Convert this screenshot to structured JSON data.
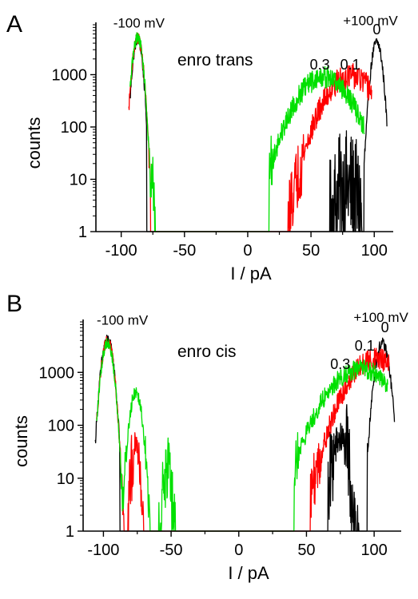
{
  "chart_data": [
    {
      "type": "line",
      "panel_label": "A",
      "title": "enro trans",
      "xlabel": "I / pA",
      "ylabel": "counts",
      "xlim": [
        -120,
        115
      ],
      "ylim": [
        1,
        10000
      ],
      "y_scale": "log",
      "x_ticks": [
        -100,
        -50,
        0,
        50,
        100
      ],
      "y_ticks": [
        1,
        10,
        100,
        1000
      ],
      "grid": false,
      "annotations": [
        {
          "text": "-100 mV",
          "x": -86,
          "y": 8000
        },
        {
          "text": "+100 mV",
          "x": 97,
          "y": 8800
        },
        {
          "text": "0",
          "x": 102,
          "y": 5900
        },
        {
          "text": "0.3",
          "x": 57,
          "y": 1250
        },
        {
          "text": "0.1",
          "x": 81,
          "y": 1250
        }
      ],
      "series": [
        {
          "label": "0",
          "color": "#000000",
          "peaks": [
            {
              "center": -87,
              "sigma": 2.6,
              "peak": 4800,
              "min": -93,
              "max": -80,
              "noise": 0.18
            },
            {
              "center": 102,
              "sigma": 3.0,
              "peak": 4200,
              "min": 92,
              "max": 110,
              "noise": 0.18
            },
            {
              "center": 78,
              "sigma": 8,
              "peak": 7,
              "min": 65,
              "max": 90,
              "noise": 0.7
            }
          ]
        },
        {
          "label": "0.1",
          "color": "#ff0000",
          "peaks": [
            {
              "center": -87,
              "sigma": 2.8,
              "peak": 5000,
              "min": -94,
              "max": -77,
              "noise": 0.18
            },
            {
              "center": 81,
              "sigma": 14,
              "peak": 950,
              "min": 32,
              "max": 98,
              "noise": 0.4
            }
          ]
        },
        {
          "label": "0.3",
          "color": "#00e000",
          "peaks": [
            {
              "center": -87,
              "sigma": 2.8,
              "peak": 5200,
              "min": -93,
              "max": -75,
              "noise": 0.18
            },
            {
              "center": -76,
              "sigma": 1.2,
              "peak": 14,
              "min": -79,
              "max": -72,
              "noise": 0.3
            },
            {
              "center": 60,
              "sigma": 15,
              "peak": 900,
              "min": 17,
              "max": 92,
              "noise": 0.35
            }
          ]
        }
      ]
    },
    {
      "type": "line",
      "panel_label": "B",
      "title": "enro cis",
      "xlabel": "I / pA",
      "ylabel": "counts",
      "xlim": [
        -115,
        120
      ],
      "ylim": [
        1,
        10000
      ],
      "y_scale": "log",
      "x_ticks": [
        -100,
        -50,
        0,
        50,
        100
      ],
      "y_ticks": [
        1,
        10,
        100,
        1000
      ],
      "grid": false,
      "annotations": [
        {
          "text": "-100 mV",
          "x": -86,
          "y": 8000
        },
        {
          "text": "+100 mV",
          "x": 105,
          "y": 9000
        },
        {
          "text": "0",
          "x": 108,
          "y": 5700
        },
        {
          "text": "0.1",
          "x": 93,
          "y": 2600
        },
        {
          "text": "0.3",
          "x": 75,
          "y": 1150
        }
      ],
      "series": [
        {
          "label": "0",
          "color": "#000000",
          "peaks": [
            {
              "center": -97,
              "sigma": 3.0,
              "peak": 4200,
              "min": -106,
              "max": -88,
              "noise": 0.18
            },
            {
              "center": 106,
              "sigma": 3.5,
              "peak": 3500,
              "min": 95,
              "max": 115,
              "noise": 0.18
            },
            {
              "center": 75,
              "sigma": 4,
              "peak": 55,
              "min": 66,
              "max": 95,
              "noise": 0.6
            }
          ]
        },
        {
          "label": "0.1",
          "color": "#ff0000",
          "peaks": [
            {
              "center": -97,
              "sigma": 3.0,
              "peak": 4000,
              "min": -105,
              "max": -85,
              "noise": 0.18
            },
            {
              "center": -76,
              "sigma": 2.2,
              "peak": 42,
              "min": -82,
              "max": -68,
              "noise": 0.45
            },
            {
              "center": 101,
              "sigma": 14,
              "peak": 1800,
              "min": 53,
              "max": 111,
              "noise": 0.35
            }
          ]
        },
        {
          "label": "0.3",
          "color": "#00e000",
          "peaks": [
            {
              "center": -97,
              "sigma": 3.0,
              "peak": 3700,
              "min": -105,
              "max": -85,
              "noise": 0.18
            },
            {
              "center": -76,
              "sigma": 3.0,
              "peak": 450,
              "min": -88,
              "max": -65,
              "noise": 0.25
            },
            {
              "center": -53,
              "sigma": 2.5,
              "peak": 12,
              "min": -59,
              "max": -47,
              "noise": 0.45
            },
            {
              "center": 90,
              "sigma": 17,
              "peak": 1150,
              "min": 41,
              "max": 110,
              "noise": 0.3
            }
          ]
        }
      ]
    }
  ]
}
